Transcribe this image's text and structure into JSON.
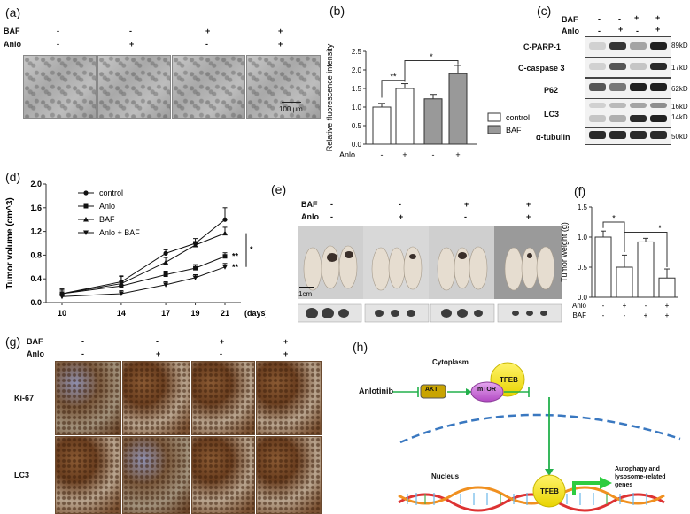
{
  "a": {
    "label": "(a)",
    "rows": [
      {
        "name": "BAF",
        "values": [
          "-",
          "-",
          "+",
          "+"
        ]
      },
      {
        "name": "Anlo",
        "values": [
          "-",
          "+",
          "-",
          "+"
        ]
      }
    ],
    "scale": "100 μm"
  },
  "b": {
    "label": "(b)",
    "chart_data": {
      "type": "bar",
      "ylabel": "Relative fluorescence intensity",
      "ylim": [
        0,
        2.5
      ],
      "yticks": [
        "0.0",
        "0.5",
        "1.0",
        "1.5",
        "2.0",
        "2.5"
      ],
      "values": [
        1.0,
        1.5,
        1.22,
        1.9
      ],
      "errors": [
        0.1,
        0.13,
        0.12,
        0.22
      ],
      "bar_colors": [
        "#ffffff",
        "#ffffff",
        "#999999",
        "#999999"
      ],
      "anlo": [
        "-",
        "+",
        "-",
        "+"
      ],
      "xrow_label": "Anlo",
      "legend": [
        {
          "name": "control",
          "color": "#ffffff"
        },
        {
          "name": "BAF",
          "color": "#999999"
        }
      ],
      "legend_position": "right",
      "significance": [
        "**",
        "*"
      ]
    }
  },
  "c": {
    "label": "(c)",
    "rows": [
      {
        "name": "BAF",
        "values": [
          "-",
          "-",
          "+",
          "+"
        ]
      },
      {
        "name": "Anlo",
        "values": [
          "-",
          "+",
          "-",
          "+"
        ]
      }
    ],
    "bands": [
      {
        "name": "C-PARP-1",
        "size": "89kD"
      },
      {
        "name": "C-caspase 3",
        "size": "17kD"
      },
      {
        "name": "P62",
        "size": "62kD"
      },
      {
        "name": "LC3",
        "size": "16kD",
        "size2": "14kD"
      },
      {
        "name": "α-tubulin",
        "size": "50kD"
      }
    ]
  },
  "d": {
    "label": "(d)",
    "chart_data": {
      "type": "line",
      "ylabel": "Tumor volume (cm^3)",
      "xlabel": "(days)",
      "x": [
        10,
        14,
        17,
        19,
        21
      ],
      "ylim": [
        0,
        2.0
      ],
      "yticks": [
        "0.0",
        "0.4",
        "0.8",
        "1.2",
        "1.6",
        "2.0"
      ],
      "series": [
        {
          "name": "control",
          "marker": "circle",
          "values": [
            0.15,
            0.35,
            0.83,
            1.0,
            1.4
          ],
          "err": [
            0.08,
            0.1,
            0.06,
            0.08,
            0.2
          ]
        },
        {
          "name": "Anlo",
          "marker": "square",
          "values": [
            0.15,
            0.28,
            0.47,
            0.58,
            0.78
          ],
          "err": [
            0.06,
            0.08,
            0.06,
            0.06,
            0.06
          ]
        },
        {
          "name": "BAF",
          "marker": "triangle",
          "values": [
            0.15,
            0.32,
            0.68,
            0.97,
            1.17
          ],
          "err": [
            0.06,
            0.12,
            0.08,
            0.06,
            0.1
          ]
        },
        {
          "name": "Anlo + BAF",
          "marker": "inverted-triangle",
          "values": [
            0.1,
            0.15,
            0.3,
            0.42,
            0.6
          ],
          "err": [
            0.04,
            0.05,
            0.05,
            0.05,
            0.06
          ]
        }
      ],
      "annotations": [
        "**",
        "**",
        "*"
      ],
      "legend_position": "top-left"
    }
  },
  "e": {
    "label": "(e)",
    "rows": [
      {
        "name": "BAF",
        "values": [
          "-",
          "-",
          "+",
          "+"
        ]
      },
      {
        "name": "Anlo",
        "values": [
          "-",
          "+",
          "-",
          "+"
        ]
      }
    ],
    "scale": "1cm"
  },
  "f": {
    "label": "(f)",
    "chart_data": {
      "type": "bar",
      "ylabel": "Tumor weight (g)",
      "ylim": [
        0,
        1.5
      ],
      "yticks": [
        "0.0",
        "0.5",
        "1.0",
        "1.5"
      ],
      "values": [
        1.0,
        0.5,
        0.92,
        0.32
      ],
      "errors": [
        0.1,
        0.2,
        0.06,
        0.15
      ],
      "rows": [
        {
          "name": "Anlo",
          "values": [
            "-",
            "+",
            "-",
            "+"
          ]
        },
        {
          "name": "BAF",
          "values": [
            "-",
            "-",
            "+",
            "+"
          ]
        }
      ],
      "significance": [
        "*",
        "*"
      ]
    }
  },
  "g": {
    "label": "(g)",
    "rows": [
      {
        "name": "BAF",
        "values": [
          "-",
          "-",
          "+",
          "+"
        ]
      },
      {
        "name": "Anlo",
        "values": [
          "-",
          "+",
          "-",
          "+"
        ]
      }
    ],
    "stains": [
      "Ki-67",
      "LC3"
    ]
  },
  "h": {
    "label": "(h)",
    "cytoplasm": "Cytoplasm",
    "nucleus": "Nucleus",
    "drug": "Anlotinib",
    "akt": "AKT",
    "mtor": "mTOR",
    "tfeb": "TFEB",
    "tfeb2": "TFEB",
    "genes_line1": "Autophagy and",
    "genes_line2": "lysosome-related",
    "genes_line3": "genes"
  },
  "colors": {
    "green": "#22b04b",
    "tfeb": "#f5e800",
    "mtor": "#c46bd0",
    "akt": "#c9a400"
  }
}
